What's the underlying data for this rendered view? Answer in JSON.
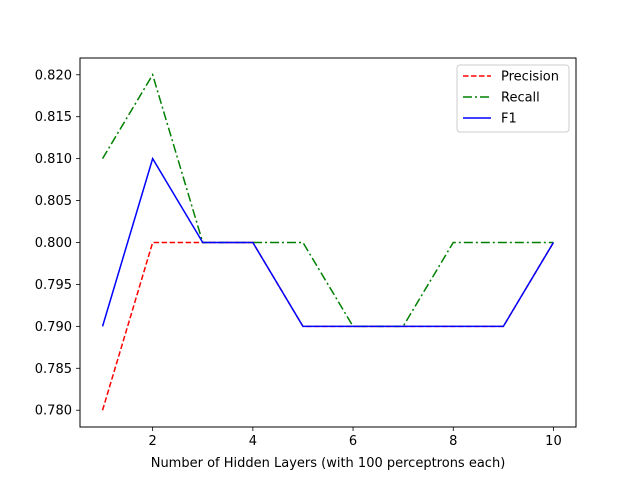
{
  "chart_data": {
    "type": "line",
    "title": "",
    "xlabel": "Number of Hidden Layers (with 100 perceptrons each)",
    "ylabel": "",
    "x": [
      1,
      2,
      3,
      4,
      5,
      6,
      7,
      8,
      9,
      10
    ],
    "xlim": [
      0.55,
      10.45
    ],
    "ylim": [
      0.778,
      0.822
    ],
    "xticks": [
      2,
      4,
      6,
      8,
      10
    ],
    "xtick_labels": [
      "2",
      "4",
      "6",
      "8",
      "10"
    ],
    "yticks": [
      0.78,
      0.785,
      0.79,
      0.795,
      0.8,
      0.805,
      0.81,
      0.815,
      0.82
    ],
    "ytick_labels": [
      "0.780",
      "0.785",
      "0.790",
      "0.795",
      "0.800",
      "0.805",
      "0.810",
      "0.815",
      "0.820"
    ],
    "grid": false,
    "legend_position": "top-right",
    "series": [
      {
        "name": "Precision",
        "values": [
          0.78,
          0.8,
          0.8,
          0.8,
          0.79,
          0.79,
          0.79,
          0.79,
          0.79,
          0.8
        ],
        "color": "#ff0000",
        "dash": "dashed"
      },
      {
        "name": "Recall",
        "values": [
          0.81,
          0.82,
          0.8,
          0.8,
          0.8,
          0.79,
          0.79,
          0.8,
          0.8,
          0.8
        ],
        "color": "#008000",
        "dash": "dashdot"
      },
      {
        "name": "F1",
        "values": [
          0.79,
          0.81,
          0.8,
          0.8,
          0.79,
          0.79,
          0.79,
          0.79,
          0.79,
          0.8
        ],
        "color": "#0000ff",
        "dash": "solid"
      }
    ]
  }
}
